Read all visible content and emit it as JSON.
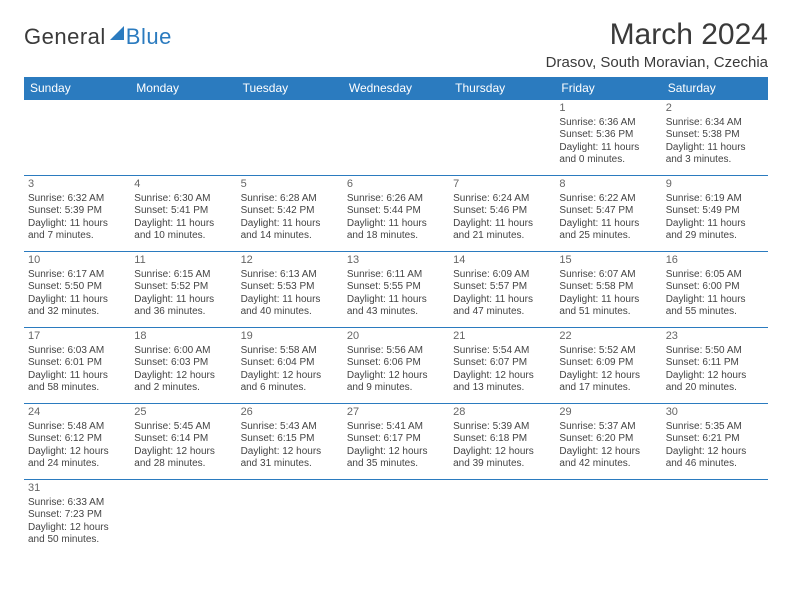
{
  "logo": {
    "part1": "General",
    "part2": "Blue"
  },
  "title": "March 2024",
  "location": "Drasov, South Moravian, Czechia",
  "colors": {
    "brand_blue": "#2b7bbf",
    "text_dark": "#3a3a3a",
    "cell_text": "#444444",
    "bg": "#ffffff"
  },
  "weekdays": [
    "Sunday",
    "Monday",
    "Tuesday",
    "Wednesday",
    "Thursday",
    "Friday",
    "Saturday"
  ],
  "weeks": [
    [
      null,
      null,
      null,
      null,
      null,
      {
        "d": "1",
        "sr": "6:36 AM",
        "ss": "5:36 PM",
        "dl": "11 hours and 0 minutes."
      },
      {
        "d": "2",
        "sr": "6:34 AM",
        "ss": "5:38 PM",
        "dl": "11 hours and 3 minutes."
      }
    ],
    [
      {
        "d": "3",
        "sr": "6:32 AM",
        "ss": "5:39 PM",
        "dl": "11 hours and 7 minutes."
      },
      {
        "d": "4",
        "sr": "6:30 AM",
        "ss": "5:41 PM",
        "dl": "11 hours and 10 minutes."
      },
      {
        "d": "5",
        "sr": "6:28 AM",
        "ss": "5:42 PM",
        "dl": "11 hours and 14 minutes."
      },
      {
        "d": "6",
        "sr": "6:26 AM",
        "ss": "5:44 PM",
        "dl": "11 hours and 18 minutes."
      },
      {
        "d": "7",
        "sr": "6:24 AM",
        "ss": "5:46 PM",
        "dl": "11 hours and 21 minutes."
      },
      {
        "d": "8",
        "sr": "6:22 AM",
        "ss": "5:47 PM",
        "dl": "11 hours and 25 minutes."
      },
      {
        "d": "9",
        "sr": "6:19 AM",
        "ss": "5:49 PM",
        "dl": "11 hours and 29 minutes."
      }
    ],
    [
      {
        "d": "10",
        "sr": "6:17 AM",
        "ss": "5:50 PM",
        "dl": "11 hours and 32 minutes."
      },
      {
        "d": "11",
        "sr": "6:15 AM",
        "ss": "5:52 PM",
        "dl": "11 hours and 36 minutes."
      },
      {
        "d": "12",
        "sr": "6:13 AM",
        "ss": "5:53 PM",
        "dl": "11 hours and 40 minutes."
      },
      {
        "d": "13",
        "sr": "6:11 AM",
        "ss": "5:55 PM",
        "dl": "11 hours and 43 minutes."
      },
      {
        "d": "14",
        "sr": "6:09 AM",
        "ss": "5:57 PM",
        "dl": "11 hours and 47 minutes."
      },
      {
        "d": "15",
        "sr": "6:07 AM",
        "ss": "5:58 PM",
        "dl": "11 hours and 51 minutes."
      },
      {
        "d": "16",
        "sr": "6:05 AM",
        "ss": "6:00 PM",
        "dl": "11 hours and 55 minutes."
      }
    ],
    [
      {
        "d": "17",
        "sr": "6:03 AM",
        "ss": "6:01 PM",
        "dl": "11 hours and 58 minutes."
      },
      {
        "d": "18",
        "sr": "6:00 AM",
        "ss": "6:03 PM",
        "dl": "12 hours and 2 minutes."
      },
      {
        "d": "19",
        "sr": "5:58 AM",
        "ss": "6:04 PM",
        "dl": "12 hours and 6 minutes."
      },
      {
        "d": "20",
        "sr": "5:56 AM",
        "ss": "6:06 PM",
        "dl": "12 hours and 9 minutes."
      },
      {
        "d": "21",
        "sr": "5:54 AM",
        "ss": "6:07 PM",
        "dl": "12 hours and 13 minutes."
      },
      {
        "d": "22",
        "sr": "5:52 AM",
        "ss": "6:09 PM",
        "dl": "12 hours and 17 minutes."
      },
      {
        "d": "23",
        "sr": "5:50 AM",
        "ss": "6:11 PM",
        "dl": "12 hours and 20 minutes."
      }
    ],
    [
      {
        "d": "24",
        "sr": "5:48 AM",
        "ss": "6:12 PM",
        "dl": "12 hours and 24 minutes."
      },
      {
        "d": "25",
        "sr": "5:45 AM",
        "ss": "6:14 PM",
        "dl": "12 hours and 28 minutes."
      },
      {
        "d": "26",
        "sr": "5:43 AM",
        "ss": "6:15 PM",
        "dl": "12 hours and 31 minutes."
      },
      {
        "d": "27",
        "sr": "5:41 AM",
        "ss": "6:17 PM",
        "dl": "12 hours and 35 minutes."
      },
      {
        "d": "28",
        "sr": "5:39 AM",
        "ss": "6:18 PM",
        "dl": "12 hours and 39 minutes."
      },
      {
        "d": "29",
        "sr": "5:37 AM",
        "ss": "6:20 PM",
        "dl": "12 hours and 42 minutes."
      },
      {
        "d": "30",
        "sr": "5:35 AM",
        "ss": "6:21 PM",
        "dl": "12 hours and 46 minutes."
      }
    ],
    [
      {
        "d": "31",
        "sr": "6:33 AM",
        "ss": "7:23 PM",
        "dl": "12 hours and 50 minutes."
      },
      null,
      null,
      null,
      null,
      null,
      null
    ]
  ],
  "labels": {
    "sunrise": "Sunrise: ",
    "sunset": "Sunset: ",
    "daylight": "Daylight: "
  }
}
